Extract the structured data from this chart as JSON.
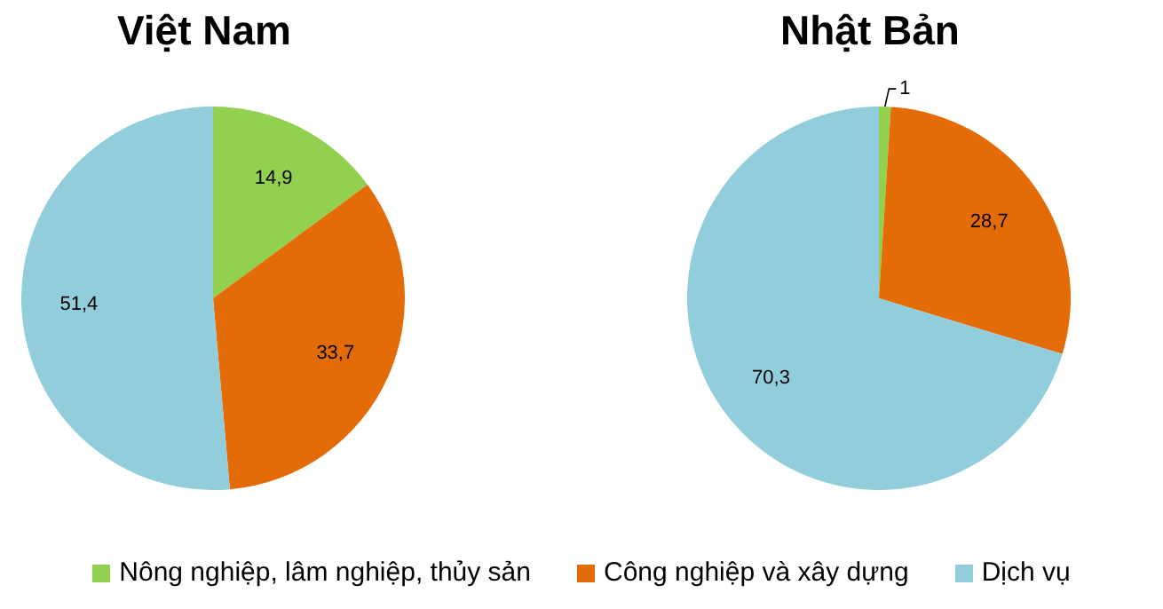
{
  "chart_data": [
    {
      "type": "pie",
      "title": "Việt Nam",
      "categories": [
        "Nông nghiệp, lâm nghiệp, thủy sản",
        "Công nghiệp và xây dựng",
        "Dịch vụ"
      ],
      "values": [
        14.9,
        33.7,
        51.4
      ],
      "value_labels": [
        "14,9",
        "33,7",
        "51,4"
      ],
      "colors": [
        "#92d050",
        "#e36c09",
        "#92cddc"
      ],
      "legend": "bottom"
    },
    {
      "type": "pie",
      "title": "Nhật Bản",
      "categories": [
        null,
        null,
        null
      ],
      "values": [
        1,
        28.7,
        70.3
      ],
      "value_labels": [
        "1",
        "28,7",
        "70,3"
      ],
      "colors": [
        "#92d050",
        "#e36c09",
        "#92cddc"
      ]
    }
  ]
}
